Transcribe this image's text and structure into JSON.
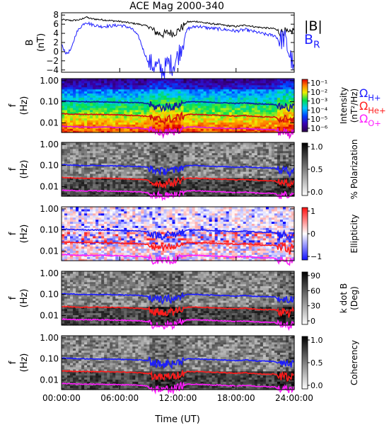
{
  "chart_data": {
    "type": "multi-panel-spectrogram",
    "title": "ACE Mag 2000-340",
    "xlabel": "Time (UT)",
    "x_ticks": [
      "00:00:00",
      "06:00:00",
      "12:00:00",
      "18:00:00",
      "24:00:00"
    ],
    "xlim_hours": [
      0,
      24
    ],
    "freq_ticks": [
      "1.00",
      "0.10",
      "0.01"
    ],
    "freq_ylabel": [
      "f",
      "(Hz)"
    ],
    "gyro_labels": {
      "h": {
        "base": "Ω",
        "sub": "H+",
        "color": "#2020ff"
      },
      "he": {
        "base": "Ω",
        "sub": "He+",
        "color": "#ff2020"
      },
      "o": {
        "base": "Ω",
        "sub": "O+",
        "color": "#ff20ff"
      }
    },
    "field_panel": {
      "ylabel": [
        "B",
        "(nT)"
      ],
      "ylim": [
        -4.5,
        8.5
      ],
      "y_ticks": [
        8,
        6,
        4,
        2,
        0,
        -2,
        -4
      ],
      "legend": [
        {
          "text": "|B|",
          "color": "#000000"
        },
        {
          "base": "B",
          "sub": "R",
          "color": "#2020ff"
        }
      ],
      "series": [
        {
          "name": "|B|",
          "color": "#000000",
          "x": [
            0,
            1,
            2,
            2.5,
            3,
            4,
            5,
            6,
            7,
            8,
            9,
            9.5,
            10,
            10.5,
            11,
            11.5,
            12,
            12.5,
            13,
            14,
            15,
            16,
            17,
            18,
            19,
            20,
            21,
            22,
            22.5,
            23,
            23.5,
            24
          ],
          "y": [
            7.0,
            6.8,
            7.0,
            7.6,
            7.2,
            7.0,
            6.8,
            6.6,
            6.3,
            6.0,
            5.5,
            4.5,
            4.0,
            3.8,
            4.2,
            4.0,
            4.5,
            5.5,
            6.5,
            6.6,
            6.2,
            6.0,
            5.7,
            5.5,
            5.8,
            5.4,
            5.2,
            5.0,
            4.2,
            4.5,
            3.8,
            5.0
          ]
        },
        {
          "name": "BR",
          "color": "#2020ff",
          "x": [
            0,
            0.5,
            1,
            1.5,
            2,
            2.5,
            3,
            4,
            5,
            6,
            7,
            7.5,
            8,
            8.5,
            9,
            9.5,
            10,
            10.5,
            11,
            11.5,
            12,
            12.5,
            13,
            14,
            15,
            16,
            17,
            18,
            19,
            20,
            21,
            22,
            22.5,
            23,
            23.5,
            24
          ],
          "y": [
            1.5,
            -0.5,
            0.5,
            4.0,
            5.5,
            6.5,
            6.0,
            5.5,
            5.6,
            5.8,
            5.3,
            4.5,
            3.0,
            0.0,
            -2.5,
            -3.0,
            -3.5,
            -4.2,
            -2.5,
            -3.0,
            -1.0,
            2.0,
            5.0,
            5.6,
            5.2,
            5.0,
            4.8,
            4.5,
            4.8,
            4.3,
            3.8,
            3.5,
            2.5,
            3.0,
            -0.5,
            -3.5
          ]
        }
      ]
    },
    "gyro_lines": {
      "x": [
        0,
        2,
        4,
        6,
        8,
        9,
        9.5,
        10,
        10.5,
        11,
        11.5,
        12,
        12.5,
        13,
        14,
        15,
        16,
        17,
        18,
        19,
        20,
        21,
        22,
        22.5,
        23,
        23.5,
        24
      ],
      "H+": [
        0.11,
        0.1,
        0.1,
        0.095,
        0.09,
        0.08,
        0.055,
        0.06,
        0.05,
        0.065,
        0.055,
        0.07,
        0.085,
        0.1,
        0.1,
        0.095,
        0.09,
        0.088,
        0.083,
        0.088,
        0.08,
        0.078,
        0.075,
        0.055,
        0.066,
        0.045,
        0.076
      ],
      "He+": [
        0.027,
        0.025,
        0.025,
        0.024,
        0.022,
        0.02,
        0.014,
        0.015,
        0.012,
        0.016,
        0.014,
        0.018,
        0.021,
        0.025,
        0.025,
        0.024,
        0.023,
        0.022,
        0.021,
        0.022,
        0.02,
        0.019,
        0.019,
        0.014,
        0.016,
        0.011,
        0.019
      ],
      "O+": [
        0.0068,
        0.0063,
        0.0063,
        0.006,
        0.0056,
        0.005,
        0.0035,
        0.0038,
        0.003,
        0.004,
        0.0035,
        0.0045,
        0.0053,
        0.0063,
        0.0063,
        0.006,
        0.0057,
        0.0055,
        0.0052,
        0.0055,
        0.005,
        0.0048,
        0.0047,
        0.0034,
        0.004,
        0.0028,
        0.0048
      ]
    },
    "spectral_panels": [
      {
        "key": "intensity",
        "cbar_label": [
          "Intensity",
          "(nT²/Hz)"
        ],
        "cbar_ticks": [
          "10⁻¹",
          "10⁻²",
          "10⁻³",
          "10⁻⁴",
          "10⁻⁵",
          "10⁻⁶"
        ],
        "colormap": "rainbow",
        "gyro_style": "dark",
        "show_gyro_labels": true
      },
      {
        "key": "polarization",
        "cbar_label": [
          "% Polarization"
        ],
        "cbar_ticks": [
          "1.0",
          "0.5",
          "0.0"
        ],
        "colormap": "gray",
        "gyro_style": "bright",
        "show_gyro_labels": false
      },
      {
        "key": "ellipticity",
        "cbar_label": [
          "Ellipticity"
        ],
        "cbar_ticks": [
          "1",
          "0",
          "−1"
        ],
        "colormap": "diverging",
        "gyro_style": "bright",
        "show_gyro_labels": false
      },
      {
        "key": "kdotb",
        "cbar_label": [
          "k dot B",
          "(Deg)"
        ],
        "cbar_ticks": [
          "90",
          "60",
          "30",
          "0"
        ],
        "colormap": "gray",
        "gyro_style": "bright",
        "show_gyro_labels": false
      },
      {
        "key": "coherency",
        "cbar_label": [
          "Coherency"
        ],
        "cbar_ticks": [
          "1.0",
          "0.5",
          "0.0"
        ],
        "colormap": "gray",
        "gyro_style": "bright",
        "show_gyro_labels": false
      }
    ]
  }
}
